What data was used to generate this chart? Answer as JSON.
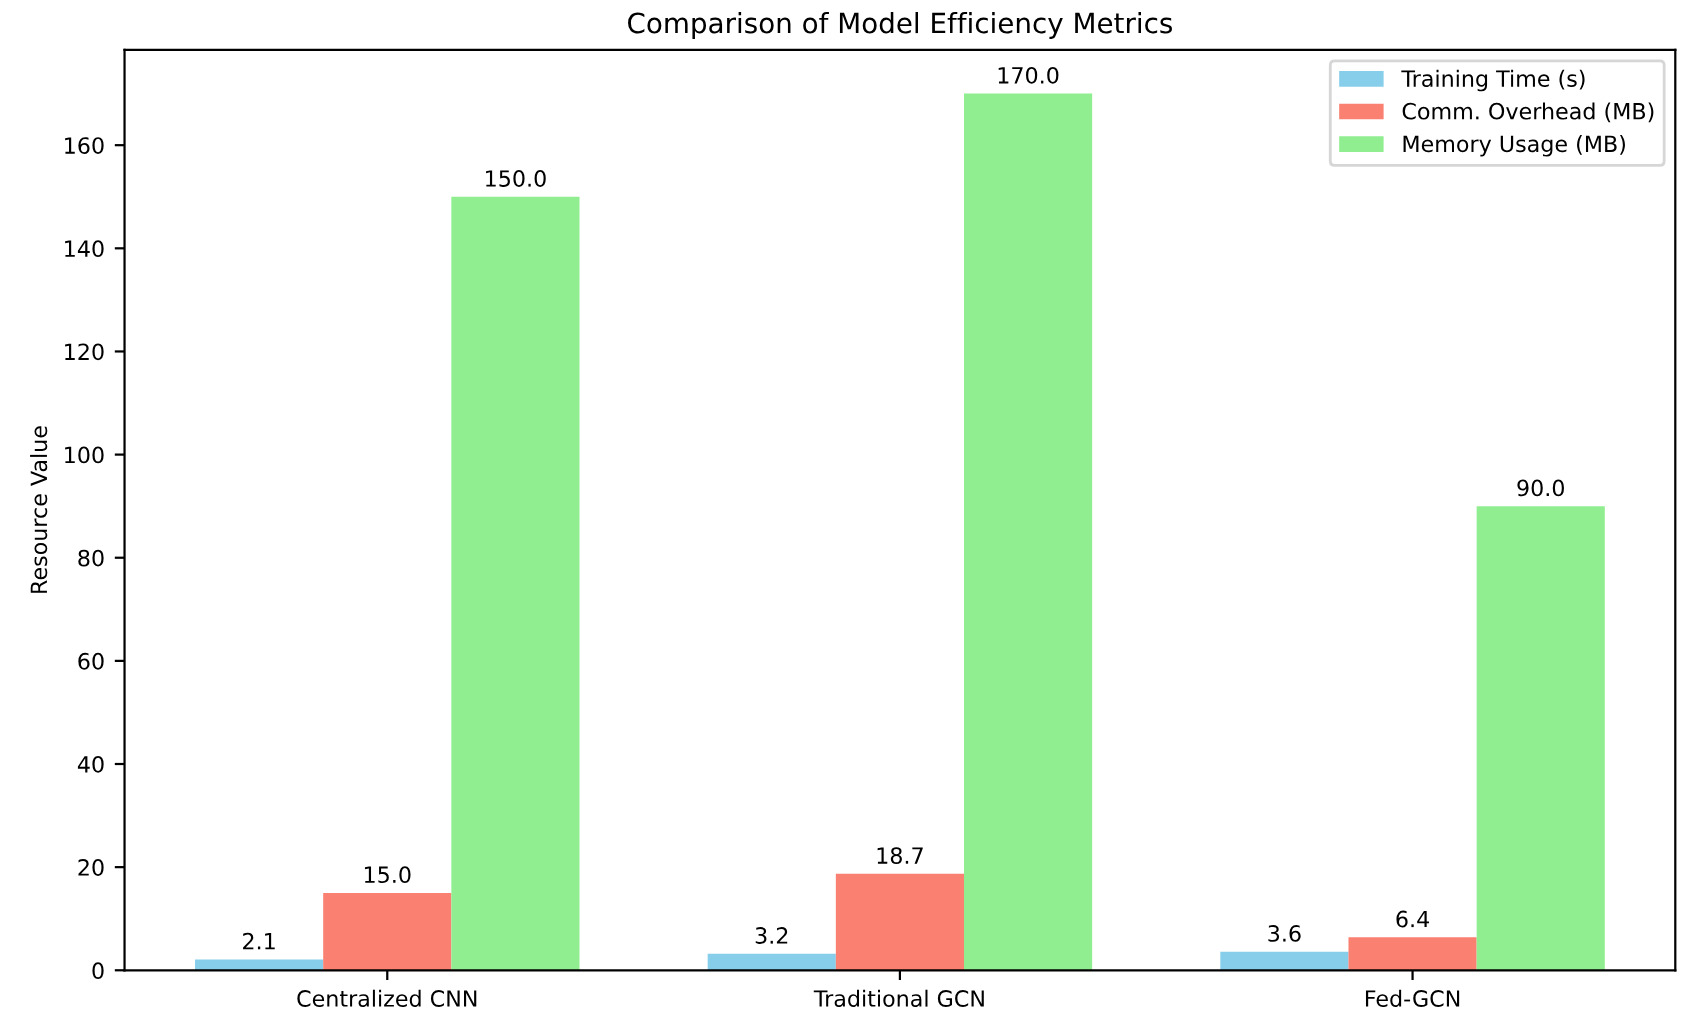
{
  "chart_data": {
    "type": "bar",
    "title": "Comparison of Model Efficiency Metrics",
    "ylabel": "Resource Value",
    "categories": [
      "Centralized CNN",
      "Traditional GCN",
      "Fed-GCN"
    ],
    "series": [
      {
        "name": "Training Time (s)",
        "color": "#87ceeb",
        "values": [
          2.1,
          3.2,
          3.6
        ],
        "value_labels": [
          "2.1",
          "3.2",
          "3.6"
        ]
      },
      {
        "name": "Comm. Overhead (MB)",
        "color": "#fa8072",
        "values": [
          15.0,
          18.7,
          6.4
        ],
        "value_labels": [
          "15.0",
          "18.7",
          "6.4"
        ]
      },
      {
        "name": "Memory Usage (MB)",
        "color": "#90ee90",
        "values": [
          150.0,
          170.0,
          90.0
        ],
        "value_labels": [
          "150.0",
          "170.0",
          "90.0"
        ]
      }
    ],
    "ylim": [
      0,
      178.5
    ],
    "yticks": [
      0,
      20,
      40,
      60,
      80,
      100,
      120,
      140,
      160
    ],
    "grid": false,
    "legend": "top right"
  }
}
